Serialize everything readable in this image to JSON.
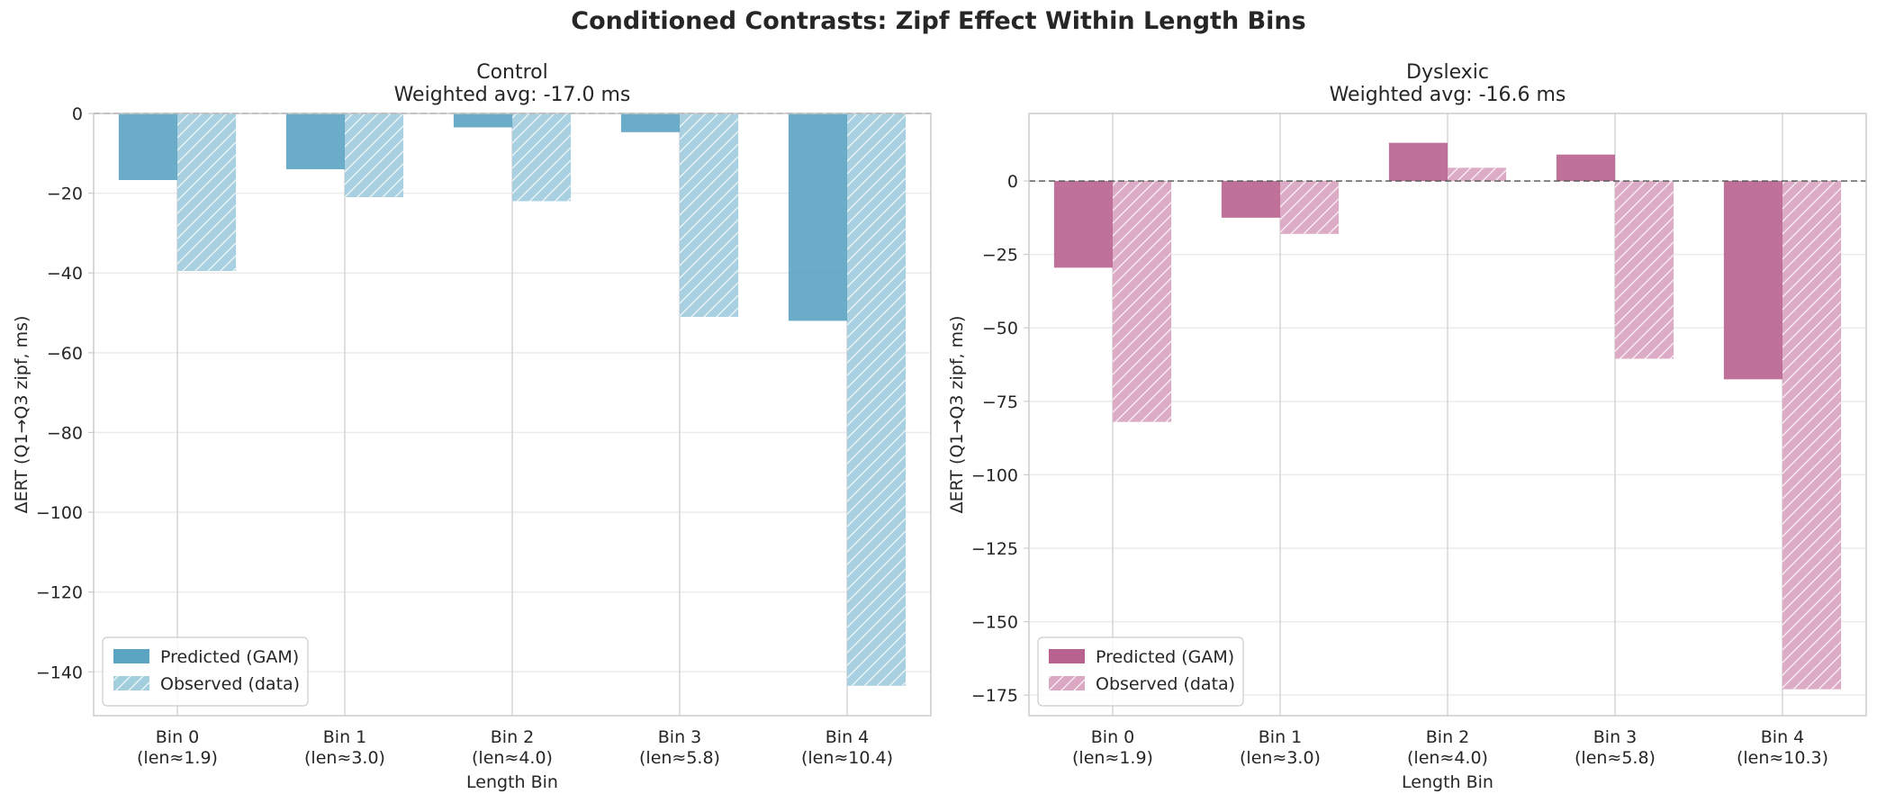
{
  "figure": {
    "suptitle": "Conditioned Contrasts: Zipf Effect Within Length Bins"
  },
  "chart_data": [
    {
      "type": "bar",
      "title": "Control",
      "subtitle": "Weighted avg: -17.0 ms",
      "xlabel": "Length Bin",
      "ylabel": "ΔERT (Q1→Q3 zipf, ms)",
      "categories": [
        "Bin 0\n(len≈1.9)",
        "Bin 1\n(len≈3.0)",
        "Bin 2\n(len≈4.0)",
        "Bin 3\n(len≈5.8)",
        "Bin 4\n(len≈10.4)"
      ],
      "series": [
        {
          "name": "Predicted (GAM)",
          "values": [
            -16.7,
            -14.0,
            -3.5,
            -4.7,
            -52.0
          ],
          "color": "#5ba4c2",
          "hatch": false
        },
        {
          "name": "Observed (data)",
          "values": [
            -39.5,
            -21.0,
            -22.0,
            -51.0,
            -143.5
          ],
          "color": "#a3cede",
          "hatch": true
        }
      ],
      "ylim": [
        -151,
        0
      ],
      "yticks": [
        0,
        -20,
        -40,
        -60,
        -80,
        -100,
        -120,
        -140
      ],
      "ytick_labels": [
        "0",
        "−20",
        "−40",
        "−60",
        "−80",
        "−100",
        "−120",
        "−140"
      ],
      "zero_line": true,
      "grid": true,
      "legend": "lower-left"
    },
    {
      "type": "bar",
      "title": "Dyslexic",
      "subtitle": "Weighted avg: -16.6 ms",
      "xlabel": "Length Bin",
      "ylabel": "ΔERT (Q1→Q3 zipf, ms)",
      "categories": [
        "Bin 0\n(len≈1.9)",
        "Bin 1\n(len≈3.0)",
        "Bin 2\n(len≈4.0)",
        "Bin 3\n(len≈5.8)",
        "Bin 4\n(len≈10.3)"
      ],
      "series": [
        {
          "name": "Predicted (GAM)",
          "values": [
            -29.5,
            -12.5,
            13.0,
            9.0,
            -67.5
          ],
          "color": "#b8628f",
          "hatch": false
        },
        {
          "name": "Observed (data)",
          "values": [
            -82.0,
            -18.0,
            4.5,
            -60.5,
            -173.0
          ],
          "color": "#daa8c3",
          "hatch": true
        }
      ],
      "ylim": [
        -182,
        23
      ],
      "yticks": [
        0,
        -25,
        -50,
        -75,
        -100,
        -125,
        -150,
        -175
      ],
      "ytick_labels": [
        "0",
        "−25",
        "−50",
        "−75",
        "−100",
        "−125",
        "−150",
        "−175"
      ],
      "zero_line": true,
      "grid": true,
      "legend": "lower-left"
    }
  ]
}
